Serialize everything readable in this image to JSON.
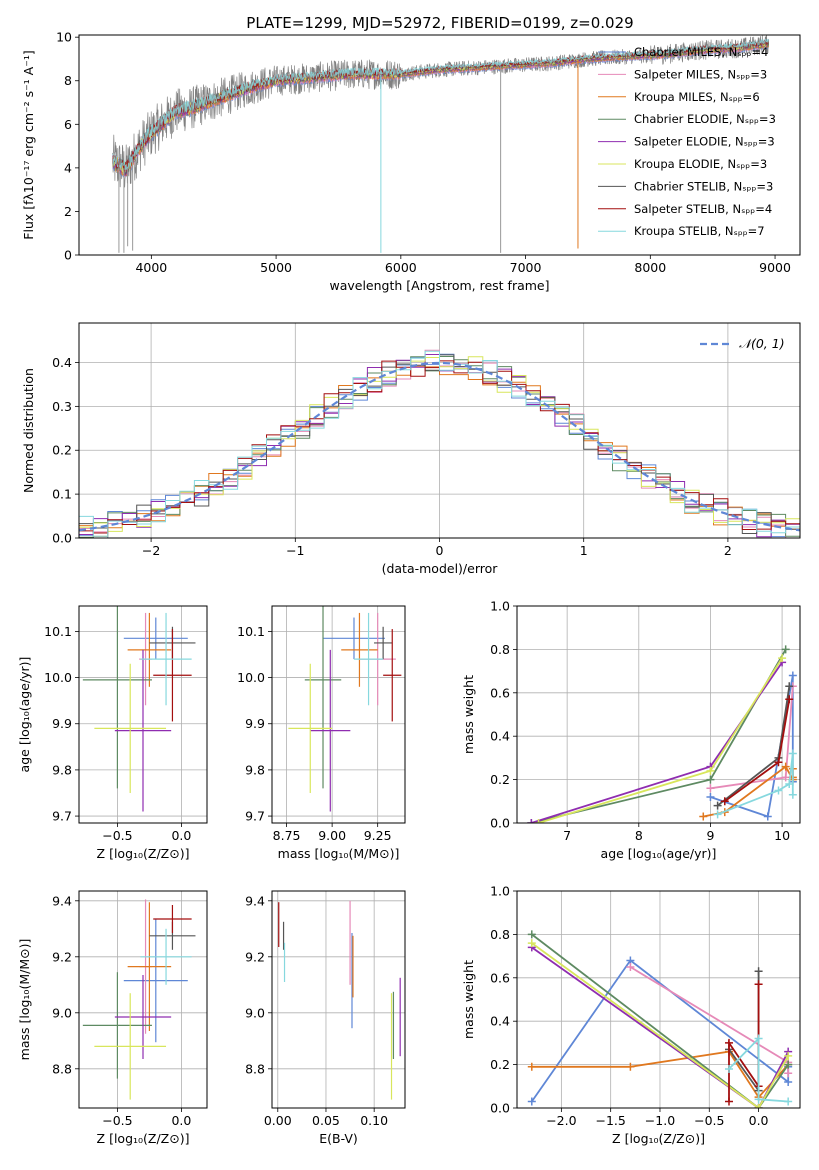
{
  "figure": {
    "title": "PLATE=1299, MJD=52972, FIBERID=0199, z=0.029",
    "colors": {
      "Chabrier MILES": "#5f87d6",
      "Salpeter MILES": "#e68ab8",
      "Kroupa MILES": "#e0781f",
      "Chabrier ELODIE": "#5e8a62",
      "Salpeter ELODIE": "#8f2db0",
      "Kroupa ELODIE": "#d8e65c",
      "Chabrier STELIB": "#555555",
      "Salpeter STELIB": "#a30f0f",
      "Kroupa STELIB": "#86d8de",
      "data": "#808080"
    }
  },
  "chart_data": [
    {
      "id": "spectrum",
      "type": "line",
      "xlabel": "wavelength [Angstrom, rest frame]",
      "ylabel": "Flux [fλ10⁻¹⁷ erg cm⁻² s⁻¹ A⁻¹]",
      "xlim": [
        3420,
        9200
      ],
      "ylim": [
        0,
        10.1
      ],
      "xticks": [
        4000,
        5000,
        6000,
        7000,
        8000,
        9000
      ],
      "yticks": [
        0,
        2,
        4,
        6,
        8,
        10
      ],
      "legend_position": "right",
      "legend": [
        "Chabrier MILES, Nₛₚₚ=4",
        "Salpeter MILES, Nₛₚₚ=3",
        "Kroupa MILES, Nₛₚₚ=6",
        "Chabrier ELODIE, Nₛₚₚ=3",
        "Salpeter ELODIE, Nₛₚₚ=3",
        "Kroupa ELODIE, Nₛₚₚ=3",
        "Chabrier STELIB, Nₛₚₚ=3",
        "Salpeter STELIB, Nₛₚₚ=4",
        "Kroupa STELIB, Nₛₚₚ=7"
      ],
      "legend_series": [
        "Chabrier MILES",
        "Salpeter MILES",
        "Kroupa MILES",
        "Chabrier ELODIE",
        "Salpeter ELODIE",
        "Kroupa ELODIE",
        "Chabrier STELIB",
        "Salpeter STELIB",
        "Kroupa STELIB"
      ],
      "continuum": [
        [
          3690,
          4.3
        ],
        [
          3800,
          3.9
        ],
        [
          3900,
          4.9
        ],
        [
          4000,
          5.6
        ],
        [
          4100,
          6.1
        ],
        [
          4200,
          6.6
        ],
        [
          4300,
          6.7
        ],
        [
          4400,
          6.9
        ],
        [
          4500,
          7.1
        ],
        [
          4600,
          7.3
        ],
        [
          4800,
          7.7
        ],
        [
          5000,
          8.0
        ],
        [
          5200,
          8.1
        ],
        [
          5400,
          8.2
        ],
        [
          5600,
          8.3
        ],
        [
          5800,
          8.3
        ],
        [
          6000,
          8.3
        ],
        [
          6300,
          8.5
        ],
        [
          6600,
          8.6
        ],
        [
          6900,
          8.7
        ],
        [
          7200,
          8.8
        ],
        [
          7500,
          9.0
        ],
        [
          7800,
          9.1
        ],
        [
          8100,
          9.2
        ],
        [
          8400,
          9.4
        ],
        [
          8700,
          9.5
        ],
        [
          8950,
          9.7
        ]
      ],
      "artifacts": [
        [
          3740,
          0.1
        ],
        [
          3780,
          0.1
        ],
        [
          3810,
          0.4
        ],
        [
          3850,
          0.2
        ],
        [
          5840,
          0.1
        ],
        [
          6800,
          0.1
        ],
        [
          7420,
          0.3
        ]
      ]
    },
    {
      "id": "residuals",
      "type": "histogram",
      "xlabel": "(data-model)/error",
      "ylabel": "Normed distribution",
      "xlim": [
        -2.5,
        2.5
      ],
      "ylim": [
        0,
        0.49
      ],
      "xticks": [
        -2,
        -1,
        0,
        1,
        2
      ],
      "yticks": [
        0.0,
        0.1,
        0.2,
        0.3,
        0.4
      ],
      "bin_width": 0.1,
      "legend_position": "top-right",
      "reference_label": "𝒩(0, 1)",
      "reference_color": "#5f87d6"
    },
    {
      "id": "age-vs-Z",
      "type": "errorbar",
      "xlabel": "Z [log₁₀(Z/Z⊙)]",
      "ylabel": "age  [log₁₀(age/yr)]",
      "xlim": [
        -0.8,
        0.2
      ],
      "ylim": [
        9.685,
        10.155
      ],
      "xticks": [
        -0.5,
        0.0
      ],
      "xticklabels": [
        "−0.5",
        "0.0"
      ],
      "yticks": [
        9.7,
        9.8,
        9.9,
        10.0,
        10.1
      ],
      "points": [
        {
          "s": "Chabrier MILES",
          "x": -0.2,
          "xe": 0.25,
          "y": 10.085,
          "ye": 0.045
        },
        {
          "s": "Salpeter MILES",
          "x": -0.28,
          "xe": 0.05,
          "y": 10.04,
          "ye": 0.1
        },
        {
          "s": "Kroupa MILES",
          "x": -0.25,
          "xe": 0.17,
          "y": 10.06,
          "ye": 0.08
        },
        {
          "s": "Chabrier ELODIE",
          "x": -0.5,
          "xe": 0.27,
          "y": 9.995,
          "ye": 0.235
        },
        {
          "s": "Salpeter ELODIE",
          "x": -0.3,
          "xe": 0.22,
          "y": 9.885,
          "ye": 0.175
        },
        {
          "s": "Kroupa ELODIE",
          "x": -0.4,
          "xe": 0.28,
          "y": 9.89,
          "ye": 0.14
        },
        {
          "s": "Chabrier STELIB",
          "x": -0.07,
          "xe": 0.18,
          "y": 10.075,
          "ye": 0.035
        },
        {
          "s": "Salpeter STELIB",
          "x": -0.07,
          "xe": 0.15,
          "y": 10.005,
          "ye": 0.1
        },
        {
          "s": "Kroupa STELIB",
          "x": -0.12,
          "xe": 0.2,
          "y": 10.04,
          "ye": 0.1
        }
      ]
    },
    {
      "id": "age-vs-mass",
      "type": "errorbar",
      "xlabel": "mass [log₁₀(M/M⊙)]",
      "ylabel": "",
      "xlim": [
        8.67,
        9.4
      ],
      "ylim": [
        9.685,
        10.155
      ],
      "xticks": [
        8.75,
        9.0,
        9.25
      ],
      "xticklabels": [
        "8.75",
        "9.00",
        "9.25"
      ],
      "yticks": [
        9.7,
        9.8,
        9.9,
        10.0,
        10.1
      ],
      "points": [
        {
          "s": "Chabrier MILES",
          "x": 9.12,
          "xe": 0.17,
          "y": 10.085,
          "ye": 0.045
        },
        {
          "s": "Salpeter MILES",
          "x": 9.25,
          "xe": 0.1,
          "y": 10.04,
          "ye": 0.1
        },
        {
          "s": "Kroupa MILES",
          "x": 9.15,
          "xe": 0.1,
          "y": 10.06,
          "ye": 0.08
        },
        {
          "s": "Chabrier ELODIE",
          "x": 8.95,
          "xe": 0.1,
          "y": 9.995,
          "ye": 0.235
        },
        {
          "s": "Salpeter ELODIE",
          "x": 8.99,
          "xe": 0.11,
          "y": 9.885,
          "ye": 0.175
        },
        {
          "s": "Kroupa ELODIE",
          "x": 8.88,
          "xe": 0.12,
          "y": 9.89,
          "ye": 0.14
        },
        {
          "s": "Chabrier STELIB",
          "x": 9.28,
          "xe": 0.05,
          "y": 10.075,
          "ye": 0.035
        },
        {
          "s": "Salpeter STELIB",
          "x": 9.33,
          "xe": 0.05,
          "y": 10.005,
          "ye": 0.1
        },
        {
          "s": "Kroupa STELIB",
          "x": 9.2,
          "xe": 0.08,
          "y": 10.04,
          "ye": 0.1
        }
      ]
    },
    {
      "id": "weight-vs-age",
      "type": "line",
      "xlabel": "age  [log₁₀(age/yr)]",
      "ylabel": "mass weight",
      "xlim": [
        6.3,
        10.25
      ],
      "ylim": [
        0,
        1.0
      ],
      "xticks": [
        7,
        8,
        9,
        10
      ],
      "yticks": [
        0.0,
        0.2,
        0.4,
        0.6,
        0.8,
        1.0
      ],
      "series": [
        {
          "s": "Chabrier MILES",
          "pts": [
            [
              9.0,
              0.12
            ],
            [
              9.8,
              0.03
            ],
            [
              10.15,
              0.68
            ],
            [
              10.15,
              0.19
            ]
          ]
        },
        {
          "s": "Salpeter MILES",
          "pts": [
            [
              9.0,
              0.16
            ],
            [
              10.05,
              0.21
            ],
            [
              10.15,
              0.63
            ]
          ]
        },
        {
          "s": "Kroupa MILES",
          "pts": [
            [
              8.9,
              0.03
            ],
            [
              9.2,
              0.05
            ],
            [
              10.05,
              0.26
            ],
            [
              10.15,
              0.2
            ],
            [
              10.15,
              0.21
            ],
            [
              10.15,
              0.25
            ]
          ]
        },
        {
          "s": "Chabrier ELODIE",
          "pts": [
            [
              6.5,
              0.0
            ],
            [
              9.0,
              0.2
            ],
            [
              10.05,
              0.8
            ]
          ]
        },
        {
          "s": "Salpeter ELODIE",
          "pts": [
            [
              6.5,
              0.0
            ],
            [
              9.0,
              0.26
            ],
            [
              10.0,
              0.74
            ]
          ]
        },
        {
          "s": "Kroupa ELODIE",
          "pts": [
            [
              6.6,
              0.0
            ],
            [
              9.0,
              0.24
            ],
            [
              10.0,
              0.76
            ]
          ]
        },
        {
          "s": "Chabrier STELIB",
          "pts": [
            [
              9.1,
              0.08
            ],
            [
              9.95,
              0.3
            ],
            [
              10.1,
              0.63
            ]
          ]
        },
        {
          "s": "Salpeter STELIB",
          "pts": [
            [
              9.2,
              0.1
            ],
            [
              9.95,
              0.28
            ],
            [
              10.1,
              0.57
            ]
          ]
        },
        {
          "s": "Kroupa STELIB",
          "pts": [
            [
              9.1,
              0.04
            ],
            [
              9.95,
              0.15
            ],
            [
              10.1,
              0.18
            ],
            [
              10.15,
              0.32
            ],
            [
              10.15,
              0.13
            ]
          ]
        }
      ]
    },
    {
      "id": "mass-vs-Z",
      "type": "errorbar",
      "xlabel": "Z [log₁₀(Z/Z⊙)]",
      "ylabel": "mass [log₁₀(M/M⊙)]",
      "xlim": [
        -0.8,
        0.2
      ],
      "ylim": [
        8.66,
        9.435
      ],
      "xticks": [
        -0.5,
        0.0
      ],
      "xticklabels": [
        "−0.5",
        "0.0"
      ],
      "yticks": [
        8.8,
        9.0,
        9.2,
        9.4
      ],
      "points": [
        {
          "s": "Chabrier MILES",
          "x": -0.2,
          "xe": 0.25,
          "y": 9.115,
          "ye": 0.22
        },
        {
          "s": "Salpeter MILES",
          "x": -0.28,
          "xe": 0.05,
          "y": 9.165,
          "ye": 0.24
        },
        {
          "s": "Kroupa MILES",
          "x": -0.25,
          "xe": 0.17,
          "y": 9.165,
          "ye": 0.23
        },
        {
          "s": "Chabrier ELODIE",
          "x": -0.5,
          "xe": 0.27,
          "y": 8.955,
          "ye": 0.19
        },
        {
          "s": "Salpeter ELODIE",
          "x": -0.3,
          "xe": 0.22,
          "y": 8.985,
          "ye": 0.15
        },
        {
          "s": "Kroupa ELODIE",
          "x": -0.4,
          "xe": 0.28,
          "y": 8.88,
          "ye": 0.19
        },
        {
          "s": "Chabrier STELIB",
          "x": -0.07,
          "xe": 0.18,
          "y": 9.275,
          "ye": 0.05
        },
        {
          "s": "Salpeter STELIB",
          "x": -0.07,
          "xe": 0.15,
          "y": 9.335,
          "ye": 0.05
        },
        {
          "s": "Kroupa STELIB",
          "x": -0.12,
          "xe": 0.2,
          "y": 9.2,
          "ye": 0.1
        }
      ]
    },
    {
      "id": "mass-vs-EBV",
      "type": "errorbar",
      "xlabel": "E(B-V)",
      "ylabel": "",
      "xlim": [
        -0.006,
        0.132
      ],
      "ylim": [
        8.66,
        9.435
      ],
      "xticks": [
        0.0,
        0.05,
        0.1
      ],
      "xticklabels": [
        "0.00",
        "0.05",
        "0.10"
      ],
      "yticks": [
        8.8,
        9.0,
        9.2,
        9.4
      ],
      "points": [
        {
          "s": "Chabrier MILES",
          "x": 0.077,
          "xe": 0,
          "y": 9.115,
          "ye": 0.17
        },
        {
          "s": "Salpeter MILES",
          "x": 0.075,
          "xe": 0,
          "y": 9.25,
          "ye": 0.15
        },
        {
          "s": "Kroupa MILES",
          "x": 0.078,
          "xe": 0,
          "y": 9.165,
          "ye": 0.11
        },
        {
          "s": "Chabrier ELODIE",
          "x": 0.12,
          "xe": 0,
          "y": 8.955,
          "ye": 0.12
        },
        {
          "s": "Salpeter ELODIE",
          "x": 0.127,
          "xe": 0,
          "y": 8.985,
          "ye": 0.14
        },
        {
          "s": "Kroupa ELODIE",
          "x": 0.118,
          "xe": 0,
          "y": 8.88,
          "ye": 0.19
        },
        {
          "s": "Chabrier STELIB",
          "x": 0.006,
          "xe": 0,
          "y": 9.275,
          "ye": 0.05
        },
        {
          "s": "Salpeter STELIB",
          "x": 0.001,
          "xe": 0,
          "y": 9.315,
          "ye": 0.08
        },
        {
          "s": "Kroupa STELIB",
          "x": 0.007,
          "xe": 0,
          "y": 9.18,
          "ye": 0.07
        }
      ]
    },
    {
      "id": "weight-vs-Z",
      "type": "line",
      "xlabel": "Z [log₁₀(Z/Z⊙)]",
      "ylabel": "mass weight",
      "xlim": [
        -2.45,
        0.42
      ],
      "ylim": [
        0,
        1.0
      ],
      "xticks": [
        -2.0,
        -1.5,
        -1.0,
        -0.5,
        0.0
      ],
      "xticklabels": [
        "−2.0",
        "−1.5",
        "−1.0",
        "−0.5",
        "0.0"
      ],
      "yticks": [
        0.0,
        0.2,
        0.4,
        0.6,
        0.8,
        1.0
      ],
      "series": [
        {
          "s": "Chabrier MILES",
          "pts": [
            [
              -2.3,
              0.03
            ],
            [
              -1.3,
              0.68
            ],
            [
              0.3,
              0.12
            ],
            [
              0.3,
              0.19
            ]
          ]
        },
        {
          "s": "Salpeter MILES",
          "pts": [
            [
              -1.3,
              0.65
            ],
            [
              0.3,
              0.21
            ],
            [
              0.3,
              0.16
            ]
          ]
        },
        {
          "s": "Kroupa MILES",
          "pts": [
            [
              -2.3,
              0.19
            ],
            [
              -1.3,
              0.19
            ],
            [
              -0.3,
              0.26
            ],
            [
              0.0,
              0.05
            ],
            [
              0.3,
              0.2
            ]
          ]
        },
        {
          "s": "Chabrier ELODIE",
          "pts": [
            [
              -2.3,
              0.8
            ],
            [
              0.0,
              0.0
            ],
            [
              0.3,
              0.2
            ]
          ]
        },
        {
          "s": "Salpeter ELODIE",
          "pts": [
            [
              -2.3,
              0.74
            ],
            [
              0.0,
              0.0
            ],
            [
              0.3,
              0.26
            ]
          ]
        },
        {
          "s": "Kroupa ELODIE",
          "pts": [
            [
              -2.3,
              0.76
            ],
            [
              0.0,
              0.0
            ],
            [
              0.3,
              0.24
            ]
          ]
        },
        {
          "s": "Chabrier STELIB",
          "pts": [
            [
              -0.3,
              0.27
            ],
            [
              0.0,
              0.08
            ],
            [
              0.0,
              0.63
            ]
          ]
        },
        {
          "s": "Salpeter STELIB",
          "pts": [
            [
              -0.3,
              0.03
            ],
            [
              -0.3,
              0.3
            ],
            [
              0.0,
              0.1
            ],
            [
              0.0,
              0.57
            ]
          ]
        },
        {
          "s": "Kroupa STELIB",
          "pts": [
            [
              -0.3,
              0.18
            ],
            [
              0.0,
              0.32
            ],
            [
              0.0,
              0.04
            ],
            [
              0.3,
              0.03
            ]
          ]
        }
      ]
    }
  ]
}
